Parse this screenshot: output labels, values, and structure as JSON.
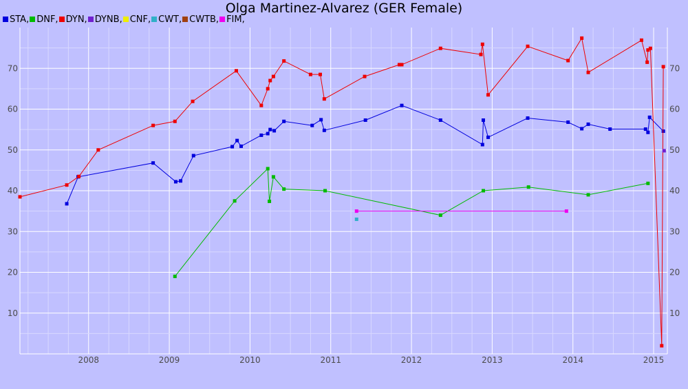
{
  "chart_data": {
    "type": "line",
    "title": "Olga Martinez-Alvarez (GER Female)",
    "xlabel": "",
    "ylabel": "",
    "xlim": [
      2007.15,
      2015.17
    ],
    "ylim": [
      0,
      80
    ],
    "y_ticks": [
      10,
      20,
      30,
      40,
      50,
      60,
      70
    ],
    "x_ticks": [
      2008,
      2009,
      2010,
      2011,
      2012,
      2013,
      2014,
      2015
    ],
    "x_tick_labels": [
      "2008",
      "2009",
      "2010",
      "2011",
      "2012",
      "2013",
      "2014",
      "2015"
    ],
    "grid": true,
    "legend_position": "top-left",
    "legend": [
      {
        "label": "STA,",
        "color": "#0000dd"
      },
      {
        "label": "DNF,",
        "color": "#00bb00"
      },
      {
        "label": "DYN,",
        "color": "#ee0000"
      },
      {
        "label": "DYNB,",
        "color": "#7020d0"
      },
      {
        "label": "CNF,",
        "color": "#eeee00"
      },
      {
        "label": "CWT,",
        "color": "#30b0c8"
      },
      {
        "label": "CWTB,",
        "color": "#a04010"
      },
      {
        "label": "FIM,",
        "color": "#ee00ee"
      }
    ],
    "series": [
      {
        "name": "STA",
        "color": "#0000dd",
        "points": [
          [
            2007.73,
            36.8
          ],
          [
            2007.87,
            43.4
          ],
          [
            2008.8,
            46.8
          ],
          [
            2009.08,
            42.2
          ],
          [
            2009.14,
            42.4
          ],
          [
            2009.3,
            48.6
          ],
          [
            2009.78,
            50.8
          ],
          [
            2009.84,
            52.3
          ],
          [
            2009.89,
            50.9
          ],
          [
            2010.14,
            53.6
          ],
          [
            2010.22,
            54.0
          ],
          [
            2010.25,
            55.0
          ],
          [
            2010.3,
            54.7
          ],
          [
            2010.42,
            57.0
          ],
          [
            2010.77,
            56.0
          ],
          [
            2010.88,
            57.4
          ],
          [
            2010.92,
            54.8
          ],
          [
            2011.43,
            57.3
          ],
          [
            2011.88,
            60.9
          ],
          [
            2012.36,
            57.3
          ],
          [
            2012.88,
            51.3
          ],
          [
            2012.89,
            57.3
          ],
          [
            2012.95,
            53.1
          ],
          [
            2013.44,
            57.8
          ],
          [
            2013.94,
            56.8
          ],
          [
            2014.11,
            55.2
          ],
          [
            2014.19,
            56.3
          ],
          [
            2014.46,
            55.1
          ],
          [
            2014.9,
            55.1
          ],
          [
            2014.93,
            54.3
          ],
          [
            2014.95,
            58.0
          ],
          [
            2015.12,
            54.6
          ]
        ]
      },
      {
        "name": "DNF",
        "color": "#00bb00",
        "points": [
          [
            2009.07,
            19.0
          ],
          [
            2009.81,
            37.5
          ],
          [
            2010.22,
            45.4
          ],
          [
            2010.24,
            37.4
          ],
          [
            2010.29,
            43.4
          ],
          [
            2010.42,
            40.4
          ],
          [
            2010.93,
            40.0
          ],
          [
            2012.36,
            34.0
          ],
          [
            2012.89,
            40.0
          ],
          [
            2013.45,
            40.9
          ],
          [
            2014.19,
            39.0
          ],
          [
            2014.93,
            41.8
          ]
        ]
      },
      {
        "name": "DYN",
        "color": "#ee0000",
        "points": [
          [
            2007.15,
            38.5
          ],
          [
            2007.73,
            41.4
          ],
          [
            2007.88,
            43.5
          ],
          [
            2008.12,
            50.0
          ],
          [
            2008.8,
            56.0
          ],
          [
            2009.07,
            57.0
          ],
          [
            2009.29,
            61.9
          ],
          [
            2009.83,
            69.4
          ],
          [
            2010.14,
            60.9
          ],
          [
            2010.22,
            65.0
          ],
          [
            2010.25,
            67.0
          ],
          [
            2010.29,
            68.0
          ],
          [
            2010.42,
            71.8
          ],
          [
            2010.75,
            68.5
          ],
          [
            2010.87,
            68.5
          ],
          [
            2010.92,
            62.5
          ],
          [
            2011.42,
            68.0
          ],
          [
            2011.85,
            70.9
          ],
          [
            2011.88,
            70.9
          ],
          [
            2012.36,
            74.9
          ],
          [
            2012.86,
            73.4
          ],
          [
            2012.88,
            75.9
          ],
          [
            2012.95,
            63.5
          ],
          [
            2013.44,
            75.4
          ],
          [
            2013.94,
            71.9
          ],
          [
            2014.11,
            77.4
          ],
          [
            2014.19,
            69.0
          ],
          [
            2014.85,
            76.9
          ],
          [
            2014.92,
            71.5
          ],
          [
            2014.93,
            74.5
          ],
          [
            2014.96,
            74.9
          ],
          [
            2015.1,
            2.0
          ],
          [
            2015.12,
            70.4
          ]
        ]
      },
      {
        "name": "DYNB",
        "color": "#7020d0",
        "points": [
          [
            2015.13,
            49.8
          ]
        ]
      },
      {
        "name": "CWT",
        "color": "#30b0c8",
        "points": [
          [
            2011.32,
            33.0
          ]
        ]
      },
      {
        "name": "FIM",
        "color": "#ee00ee",
        "points": [
          [
            2011.32,
            35.0
          ],
          [
            2013.92,
            35.0
          ]
        ]
      }
    ]
  }
}
